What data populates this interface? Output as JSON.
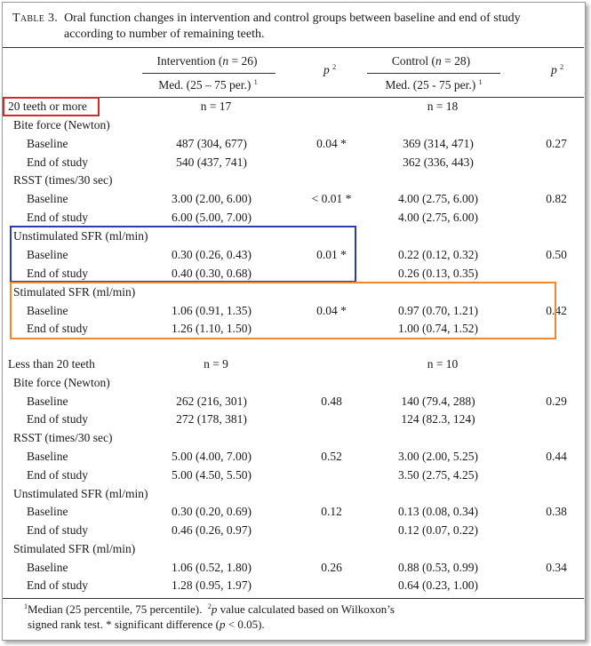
{
  "caption": {
    "label": "Table 3.",
    "text_line1": "Oral function changes in intervention and control groups between baseline and end of study",
    "text_line2": "according to number of remaining teeth."
  },
  "header": {
    "intervention_pre": "Intervention (",
    "intervention_n": "n",
    "intervention_post": " = 26)",
    "control_pre": "Control (",
    "control_n": "n",
    "control_post": " = 28)",
    "p": "p",
    "p_sup": "2",
    "med_intervention": "Med. (25 – 75 per.)",
    "med_control": "Med. (25 - 75 per.)",
    "med_sup": "1"
  },
  "groups": [
    {
      "label": "20 teeth or more",
      "n_intervention": "n = 17",
      "n_control": "n = 18",
      "measures": [
        {
          "name": "Bite force (Newton)",
          "rows": [
            {
              "label": "Baseline",
              "intervention": "487 (304, 677)",
              "p1": "0.04 *",
              "control": "369 (314, 471)",
              "p2": "0.27"
            },
            {
              "label": "End of study",
              "intervention": "540 (437, 741)",
              "p1": "",
              "control": "362 (336, 443)",
              "p2": ""
            }
          ]
        },
        {
          "name": "RSST (times/30 sec)",
          "rows": [
            {
              "label": "Baseline",
              "intervention": "3.00 (2.00, 6.00)",
              "p1": "< 0.01 *",
              "control": "4.00 (2.75, 6.00)",
              "p2": "0.82"
            },
            {
              "label": "End of study",
              "intervention": "6.00 (5.00, 7.00)",
              "p1": "",
              "control": "4.00 (2.75, 6.00)",
              "p2": ""
            }
          ]
        },
        {
          "name": "Unstimulated SFR (ml/min)",
          "rows": [
            {
              "label": "Baseline",
              "intervention": "0.30 (0.26, 0.43)",
              "p1": "0.01 *",
              "control": "0.22 (0.12, 0.32)",
              "p2": "0.50"
            },
            {
              "label": "End of study",
              "intervention": "0.40 (0.30, 0.68)",
              "p1": "",
              "control": "0.26 (0.13, 0.35)",
              "p2": ""
            }
          ]
        },
        {
          "name": "Stimulated SFR (ml/min)",
          "rows": [
            {
              "label": "Baseline",
              "intervention": "1.06 (0.91, 1.35)",
              "p1": "0.04 *",
              "control": "0.97 (0.70, 1.21)",
              "p2": "0.42"
            },
            {
              "label": "End of study",
              "intervention": "1.26 (1.10, 1.50)",
              "p1": "",
              "control": "1.00 (0.74, 1.52)",
              "p2": ""
            }
          ]
        }
      ]
    },
    {
      "label": "Less than 20 teeth",
      "n_intervention": "n = 9",
      "n_control": "n = 10",
      "measures": [
        {
          "name": "Bite force (Newton)",
          "rows": [
            {
              "label": "Baseline",
              "intervention": "262 (216, 301)",
              "p1": "0.48",
              "control": "140 (79.4, 288)",
              "p2": "0.29"
            },
            {
              "label": "End of study",
              "intervention": "272 (178, 381)",
              "p1": "",
              "control": "124 (82.3, 124)",
              "p2": ""
            }
          ]
        },
        {
          "name": "RSST (times/30 sec)",
          "rows": [
            {
              "label": "Baseline",
              "intervention": "5.00 (4.00, 7.00)",
              "p1": "0.52",
              "control": "3.00 (2.00, 5.25)",
              "p2": "0.44"
            },
            {
              "label": "End of study",
              "intervention": "5.00 (4.50, 5.50)",
              "p1": "",
              "control": "3.50 (2.75, 4.25)",
              "p2": ""
            }
          ]
        },
        {
          "name": "Unstimulated SFR (ml/min)",
          "rows": [
            {
              "label": "Baseline",
              "intervention": "0.30 (0.20, 0.69)",
              "p1": "0.12",
              "control": "0.13 (0.08, 0.34)",
              "p2": "0.38"
            },
            {
              "label": "End of study",
              "intervention": "0.46 (0.26, 0.97)",
              "p1": "",
              "control": "0.12 (0.07, 0.22)",
              "p2": ""
            }
          ]
        },
        {
          "name": "Stimulated SFR (ml/min)",
          "rows": [
            {
              "label": "Baseline",
              "intervention": "1.06 (0.52, 1.80)",
              "p1": "0.26",
              "control": "0.88 (0.53, 0.99)",
              "p2": "0.34"
            },
            {
              "label": "End of study",
              "intervention": "1.28 (0.95, 1.97)",
              "p1": "",
              "control": "0.64 (0.23, 1.00)",
              "p2": ""
            }
          ]
        }
      ]
    }
  ],
  "footnote": {
    "sup1": "1",
    "text1": "Median (25 percentile, 75 percentile).",
    "sup2": "2",
    "p": "p",
    "text2": " value calculated based on Wilkoxon’s",
    "line2_pre": "signed rank test.  * significant difference (",
    "line2_p": "p",
    "line2_post": " < 0.05)."
  },
  "highlight_colors": {
    "group1_label_box": "#d42a2a",
    "unstimulated_box": "#2b3da8",
    "stimulated_box": "#ef8a2c"
  }
}
